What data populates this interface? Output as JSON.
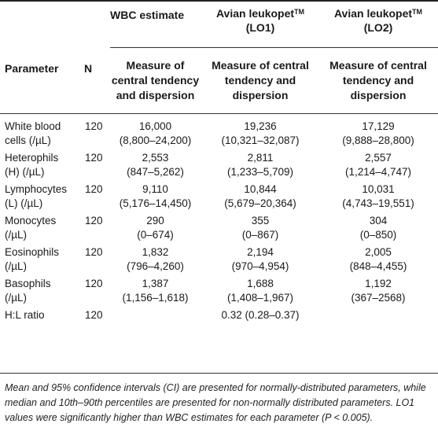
{
  "header": {
    "col_wbc_title": "WBC estimate",
    "col_lo1_title": "Avian leukopet",
    "col_lo1_sup": "TM",
    "col_lo1_sub": "(LO1)",
    "col_lo2_title": "Avian leukopet",
    "col_lo2_sup": "TM",
    "col_lo2_sub": "(LO2)",
    "parameter": "Parameter",
    "n": "N",
    "measure_line1": "Measure of",
    "measure_line2": "central tendency",
    "measure_line3": "and dispersion",
    "measure_alt_line1": "Measure of central",
    "measure_alt_line2": "tendency and",
    "measure_alt_line3": "dispersion"
  },
  "rows": [
    {
      "param1": "White blood",
      "param2": "cells (/µL)",
      "n": "120",
      "wbc1": "16,000",
      "wbc2": "(8,800–24,200)",
      "lo1_1": "19,236",
      "lo1_2": "(10,321–32,087)",
      "lo2_1": "17,129",
      "lo2_2": "(9,888–28,800)"
    },
    {
      "param1": "Heterophils",
      "param2": "(H) (/µL)",
      "n": "120",
      "wbc1": "2,553",
      "wbc2": "(847–5,262)",
      "lo1_1": "2,811",
      "lo1_2": "(1,233–5,709)",
      "lo2_1": "2,557",
      "lo2_2": "(1,214–4,747)"
    },
    {
      "param1": "Lymphocytes",
      "param2": "(L) (/µL)",
      "n": "120",
      "wbc1": "9,110",
      "wbc2": "(5,176–14,450)",
      "lo1_1": "10,844",
      "lo1_2": "(5,679–20,364)",
      "lo2_1": "10,031",
      "lo2_2": "(4,743–19,551)"
    },
    {
      "param1": "Monocytes",
      "param2": "(/µL)",
      "n": "120",
      "wbc1": "290",
      "wbc2": "(0–674)",
      "lo1_1": "355",
      "lo1_2": "(0–867)",
      "lo2_1": "304",
      "lo2_2": "(0–850)"
    },
    {
      "param1": "Eosinophils",
      "param2": "(/µL)",
      "n": "120",
      "wbc1": "1,832",
      "wbc2": "(796–4,260)",
      "lo1_1": "2,194",
      "lo1_2": "(970–4,954)",
      "lo2_1": "2,005",
      "lo2_2": "(848–4,455)"
    },
    {
      "param1": "Basophils",
      "param2": "(/µL)",
      "n": "120",
      "wbc1": "1,387",
      "wbc2": "(1,156–1,618)",
      "lo1_1": "1,688",
      "lo1_2": "(1,408–1,967)",
      "lo2_1": "1,192",
      "lo2_2": "(367–2568)"
    }
  ],
  "ratio_row": {
    "param": "H:L ratio",
    "n": "120",
    "value": "0.32 (0.28–0.37)"
  },
  "footnote": "Mean and 95% confidence intervals (CI) are presented for normally-distributed parameters, while median and 10th–90th percentiles are presented for non-normally distributed parameters. LO1 values were significantly higher than WBC estimates for each parameter (P < 0.005)."
}
